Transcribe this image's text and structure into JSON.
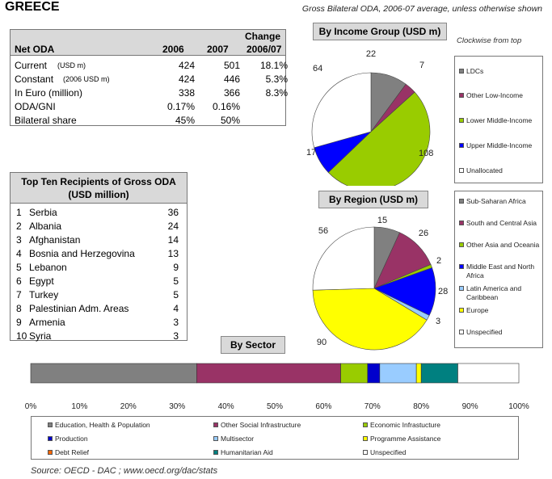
{
  "header": {
    "country": "GREECE",
    "subtitle": "Gross Bilateral ODA, 2006-07 average, unless otherwise shown"
  },
  "net_oda": {
    "header": {
      "label": "Net ODA",
      "col1": "2006",
      "col2": "2007",
      "col3a": "Change",
      "col3b": "2006/07"
    },
    "rows": [
      {
        "label": "Current",
        "unit": "(USD m)",
        "v2006": "424",
        "v2007": "501",
        "change": "18.1%"
      },
      {
        "label": "Constant",
        "unit": "(2006 USD m)",
        "v2006": "424",
        "v2007": "446",
        "change": "5.3%"
      },
      {
        "label": "In Euro (million)",
        "unit": "",
        "v2006": "338",
        "v2007": "366",
        "change": "8.3%"
      },
      {
        "label": "ODA/GNI",
        "unit": "",
        "v2006": "0.17%",
        "v2007": "0.16%",
        "change": ""
      },
      {
        "label": "Bilateral share",
        "unit": "",
        "v2006": "45%",
        "v2007": "50%",
        "change": ""
      }
    ]
  },
  "top_recipients": {
    "title_line1": "Top Ten Recipients of Gross ODA",
    "title_line2": "(USD million)",
    "rows": [
      {
        "rank": "1",
        "name": "Serbia",
        "value": "36"
      },
      {
        "rank": "2",
        "name": "Albania",
        "value": "24"
      },
      {
        "rank": "3",
        "name": "Afghanistan",
        "value": "14"
      },
      {
        "rank": "4",
        "name": "Bosnia and Herzegovina",
        "value": "13"
      },
      {
        "rank": "5",
        "name": "Lebanon",
        "value": "9"
      },
      {
        "rank": "6",
        "name": "Egypt",
        "value": "5"
      },
      {
        "rank": "7",
        "name": "Turkey",
        "value": "5"
      },
      {
        "rank": "8",
        "name": "Palestinian Adm. Areas",
        "value": "4"
      },
      {
        "rank": "9",
        "name": "Armenia",
        "value": "3"
      },
      {
        "rank": "10",
        "name": "Syria",
        "value": "3"
      }
    ]
  },
  "income_chart": {
    "button": "By Income Group (USD m)",
    "note": "Clockwise from top"
  },
  "region_chart": {
    "button": "By Region (USD m)"
  },
  "sector_chart": {
    "button": "By Sector"
  },
  "source": "Source:  OECD - DAC ; www.oecd.org/dac/stats",
  "chart_data": [
    {
      "type": "pie",
      "title": "By Income Group (USD m)",
      "direction": "clockwise from top",
      "slices": [
        {
          "label": "LDCs",
          "value": 22,
          "color": "#808080"
        },
        {
          "label": "Other Low-Income",
          "value": 7,
          "color": "#993366"
        },
        {
          "label": "Lower Middle-Income",
          "value": 108,
          "color": "#99cc00"
        },
        {
          "label": "Upper Middle-Income",
          "value": 17,
          "color": "#0000ff"
        },
        {
          "label": "Unallocated",
          "value": 64,
          "color": "#ffffff"
        }
      ]
    },
    {
      "type": "pie",
      "title": "By Region (USD m)",
      "direction": "clockwise from top",
      "slices": [
        {
          "label": "Sub-Saharan Africa",
          "value": 15,
          "color": "#808080"
        },
        {
          "label": "South and Central Asia",
          "value": 26,
          "color": "#993366"
        },
        {
          "label": "Other Asia and Oceania",
          "value": 2,
          "color": "#99cc00"
        },
        {
          "label": "Middle East and North Africa",
          "value": 28,
          "color": "#0000ff"
        },
        {
          "label": "Latin America and Caribbean",
          "value": 3,
          "color": "#99ccff"
        },
        {
          "label": "Europe",
          "value": 90,
          "color": "#ffff00"
        },
        {
          "label": "Unspecified",
          "value": 56,
          "color": "#ffffff"
        }
      ]
    },
    {
      "type": "bar",
      "orientation": "horizontal-stacked-100",
      "title": "By Sector",
      "xlim": [
        0,
        100
      ],
      "ticks": [
        "0%",
        "10%",
        "20%",
        "30%",
        "40%",
        "50%",
        "60%",
        "70%",
        "80%",
        "90%",
        "100%"
      ],
      "segments": [
        {
          "label": "Education, Health & Population",
          "value": 34,
          "color": "#808080"
        },
        {
          "label": "Other Social Infrastructure",
          "value": 29.5,
          "color": "#993366"
        },
        {
          "label": "Economic Infrastucture",
          "value": 5.5,
          "color": "#99cc00"
        },
        {
          "label": "Production",
          "value": 2.5,
          "color": "#0000cc"
        },
        {
          "label": "Multisector",
          "value": 7.5,
          "color": "#99ccff"
        },
        {
          "label": "Programme Assistance",
          "value": 1,
          "color": "#ffff00"
        },
        {
          "label": "Debt Relief",
          "value": 0,
          "color": "#ff6600"
        },
        {
          "label": "Humanitarian Aid",
          "value": 7.5,
          "color": "#008080"
        },
        {
          "label": "Unspecified",
          "value": 12.5,
          "color": "#ffffff"
        }
      ]
    }
  ]
}
